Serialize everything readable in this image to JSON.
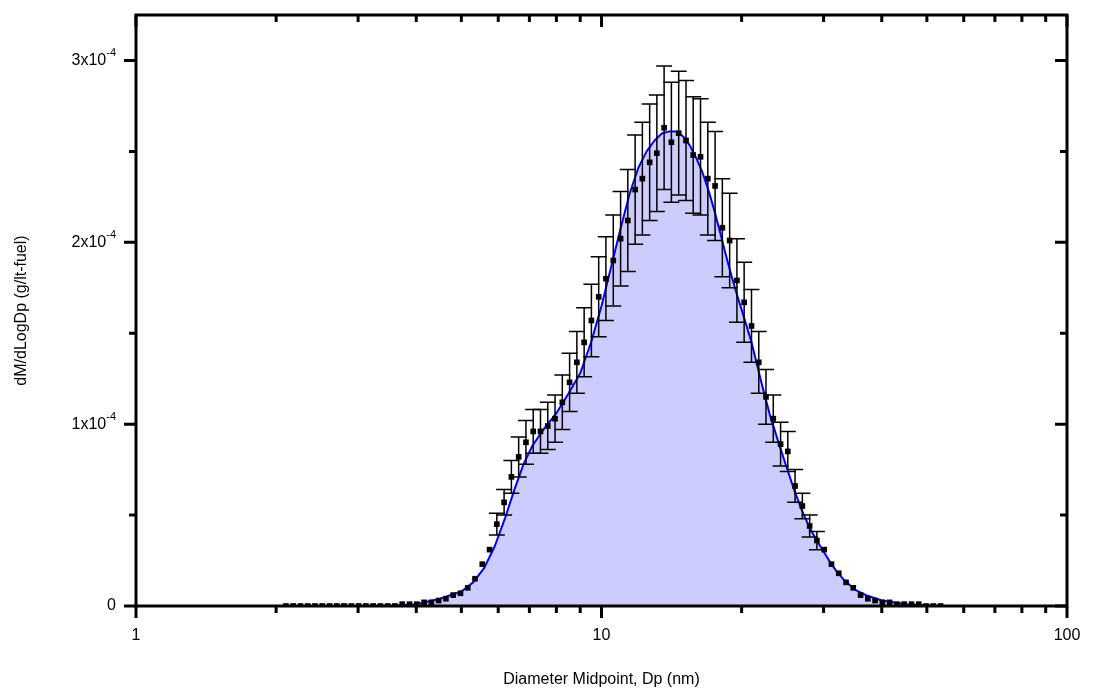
{
  "chart_data": {
    "type": "scatter",
    "xlabel": "Diameter Midpoint, Dp (nm)",
    "ylabel": "dM/dLogDp (g/lt-fuel)",
    "log": "x",
    "xlim": [
      1,
      100
    ],
    "ylim": [
      0,
      0.000325
    ],
    "xticks": [
      1,
      {
        "value": 2,
        "label": null
      },
      {
        "value": 3,
        "label": null
      },
      {
        "value": 4,
        "label": null
      },
      {
        "value": 5,
        "label": null
      },
      {
        "value": 6,
        "label": null
      },
      {
        "value": 7,
        "label": null
      },
      {
        "value": 8,
        "label": null
      },
      {
        "value": 9,
        "label": null
      },
      10,
      {
        "value": 20,
        "label": null
      },
      {
        "value": 30,
        "label": null
      },
      {
        "value": 40,
        "label": null
      },
      {
        "value": 50,
        "label": null
      },
      {
        "value": 60,
        "label": null
      },
      {
        "value": 70,
        "label": null
      },
      {
        "value": 80,
        "label": null
      },
      {
        "value": 90,
        "label": null
      },
      100
    ],
    "yticks": [
      0,
      {
        "value": 5e-05,
        "label": null
      },
      {
        "value": 0.0001,
        "label": "1x10$^{-4}$"
      },
      {
        "value": 0.00015,
        "label": null
      },
      {
        "value": 0.0002,
        "label": "2x10$^{-4}$"
      },
      {
        "value": 0.00025,
        "label": null
      },
      {
        "value": 0.0003,
        "label": "3x10$^{-4}$"
      }
    ],
    "series": [
      {
        "type": "area",
        "color": "#0000ff",
        "x": [
          2.1,
          3,
          3.5,
          4,
          4.5,
          5,
          5.3,
          5.6,
          5.9,
          6.2,
          6.5,
          6.8,
          7.1,
          7.5,
          8,
          8.5,
          9,
          9.5,
          10,
          10.5,
          11,
          11.5,
          12,
          12.5,
          13,
          13.5,
          14,
          14.5,
          15,
          15.5,
          16,
          16.5,
          17,
          17.5,
          18,
          18.5,
          19,
          19.5,
          20,
          21,
          22,
          23,
          24,
          25,
          26,
          27,
          28,
          29,
          30,
          31,
          32,
          33,
          34,
          35,
          37,
          40,
          45,
          53.5
        ],
        "values": [
          0,
          0,
          0,
          1e-06,
          4e-06,
          8e-06,
          1.3e-05,
          2.1e-05,
          3.3e-05,
          4.8e-05,
          6.4e-05,
          7.8e-05,
          8.8e-05,
          9.7e-05,
          0.000106,
          0.000117,
          0.000128,
          0.000145,
          0.000165,
          0.000187,
          0.000208,
          0.000227,
          0.000241,
          0.00025,
          0.000256,
          0.00026,
          0.000261,
          0.000261,
          0.000258,
          0.000253,
          0.000246,
          0.000238,
          0.000228,
          0.000217,
          0.000205,
          0.000193,
          0.000182,
          0.000172,
          0.000163,
          0.000145,
          0.000124,
          0.000105,
          9e-05,
          7.6e-05,
          6.3e-05,
          5.2e-05,
          4.3e-05,
          3.6e-05,
          3e-05,
          2.4e-05,
          1.9e-05,
          1.5e-05,
          1.2e-05,
          9e-06,
          6e-06,
          3e-06,
          1e-06,
          0
        ]
      },
      {
        "color": "#000000",
        "marker": "square",
        "x": [
          2.099,
          2.176,
          2.256,
          2.338,
          2.424,
          2.513,
          2.605,
          2.7,
          2.799,
          2.902,
          3.008,
          3.118,
          3.232,
          3.35,
          3.473,
          3.6,
          3.732,
          3.869,
          4.011,
          4.158,
          4.31,
          4.468,
          4.632,
          4.802,
          4.978,
          5.16,
          5.349,
          5.545,
          5.748,
          5.959,
          6.177,
          6.404,
          6.638,
          6.882,
          7.134,
          7.395,
          7.666,
          7.947,
          8.238,
          8.54,
          8.853,
          9.177,
          9.513,
          9.862,
          10.22,
          10.6,
          10.99,
          11.39,
          11.81,
          12.24,
          12.69,
          13.15,
          13.63,
          14.13,
          14.65,
          15.19,
          15.74,
          16.32,
          16.92,
          17.54,
          18.18,
          18.85,
          19.54,
          20.25,
          21,
          21.77,
          22.56,
          23.39,
          24.25,
          25.13,
          26.05,
          27.01,
          28,
          29.02,
          30.09,
          31.19,
          32.33,
          33.52,
          34.74,
          36.02,
          37.34,
          38.7,
          40.12,
          41.59,
          43.12,
          44.7,
          46.34,
          48.03,
          49.79,
          51.62,
          53.51
        ],
        "values": [
          0,
          0,
          0,
          0,
          0,
          0,
          0,
          0,
          0,
          0,
          0,
          0,
          0,
          0,
          0,
          0,
          1e-06,
          1e-06,
          1e-06,
          2e-06,
          2e-06,
          3e-06,
          4e-06,
          6e-06,
          7e-06,
          1e-05,
          1.5e-05,
          2.3e-05,
          3.1e-05,
          4.5e-05,
          5.7e-05,
          7.1e-05,
          8.2e-05,
          9e-05,
          9.6e-05,
          9.6e-05,
          9.9e-05,
          0.000103,
          0.000112,
          0.000123,
          0.000134,
          0.000145,
          0.000157,
          0.00017,
          0.00018,
          0.00019,
          0.000202,
          0.000212,
          0.000229,
          0.000235,
          0.000244,
          0.000249,
          0.000263,
          0.000255,
          0.00026,
          0.000256,
          0.000248,
          0.000247,
          0.000235,
          0.000231,
          0.000208,
          0.000201,
          0.000179,
          0.000167,
          0.000154,
          0.000134,
          0.000115,
          0.000103,
          8.9e-05,
          8.5e-05,
          6.6e-05,
          5.5e-05,
          4.4e-05,
          3.6e-05,
          3.1e-05,
          2.3e-05,
          1.8e-05,
          1.3e-05,
          1e-05,
          6e-06,
          4e-06,
          3e-06,
          2e-06,
          2e-06,
          1e-06,
          1e-06,
          1e-06,
          1e-06,
          0,
          0,
          0
        ],
        "errors": [
          null,
          null,
          null,
          null,
          null,
          null,
          null,
          null,
          null,
          null,
          null,
          null,
          null,
          null,
          null,
          null,
          null,
          null,
          null,
          null,
          null,
          null,
          null,
          null,
          null,
          null,
          null,
          null,
          null,
          6e-06,
          7e-06,
          9e-06,
          1.1e-05,
          1.2e-05,
          1.2e-05,
          1.2e-05,
          1.3e-05,
          1.3e-05,
          1.5e-05,
          1.6e-05,
          1.7e-05,
          1.9e-05,
          2e-05,
          2.2e-05,
          2.3e-05,
          2.5e-05,
          2.6e-05,
          2.8e-05,
          3e-05,
          3.1e-05,
          3.2e-05,
          3.2e-05,
          3.4e-05,
          3.3e-05,
          3.4e-05,
          3.3e-05,
          3.2e-05,
          3.2e-05,
          3.1e-05,
          3e-05,
          2.7e-05,
          2.6e-05,
          2.3e-05,
          2.2e-05,
          2e-05,
          1.7e-05,
          1.5e-05,
          1.3e-05,
          1.2e-05,
          1.1e-05,
          9e-06,
          7e-06,
          6e-06,
          5e-06,
          null,
          null,
          null,
          null,
          null,
          null,
          null,
          null,
          null,
          null,
          null,
          null,
          null,
          null,
          null,
          null,
          null
        ]
      }
    ]
  }
}
